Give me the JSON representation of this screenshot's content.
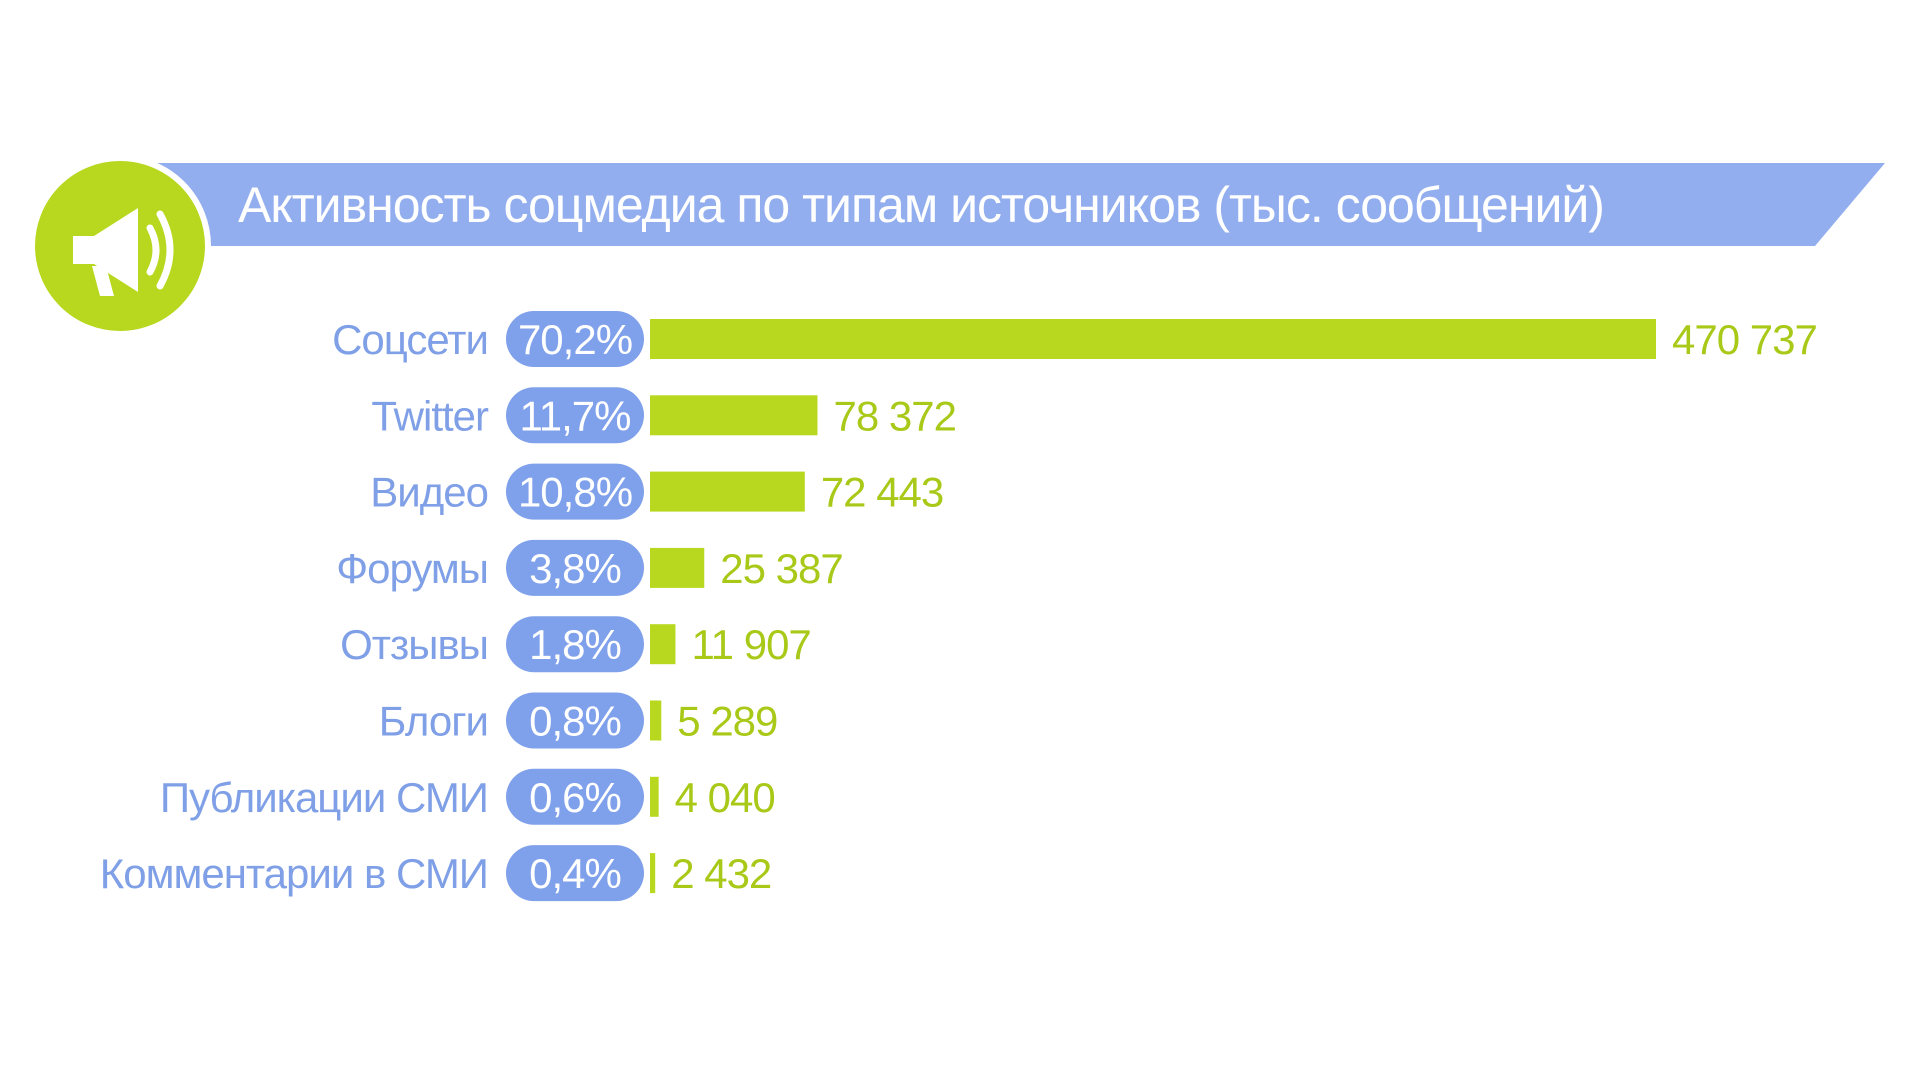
{
  "colors": {
    "banner": "#93AEEF",
    "accent": "#B7D81E",
    "pill": "#7FA0EA",
    "category_text": "#7F9FE6",
    "value_text": "#A9C919",
    "icon_circle": "#B7D81E",
    "icon_glyph": "#ffffff"
  },
  "header": {
    "icon": "megaphone-icon"
  },
  "chart_data": {
    "type": "bar",
    "orientation": "horizontal",
    "title": "Активность соцмедиа по типам источников (тыс. сообщений)",
    "categories": [
      "Соцсети",
      "Twitter",
      "Видео",
      "Форумы",
      "Отзывы",
      "Блоги",
      "Публикации СМИ",
      "Комментарии в СМИ"
    ],
    "values": [
      470737,
      78372,
      72443,
      25387,
      11907,
      5289,
      4040,
      2432
    ],
    "value_labels": [
      "470 737",
      "78 372",
      "72 443",
      "25 387",
      "11 907",
      "5 289",
      "4 040",
      "2 432"
    ],
    "percent_labels": [
      "70,2%",
      "11,7%",
      "10,8%",
      "3,8%",
      "1,8%",
      "0,8%",
      "0,6%",
      "0,4%"
    ],
    "xlim": [
      0,
      470737
    ],
    "grid": false,
    "legend": "none"
  }
}
